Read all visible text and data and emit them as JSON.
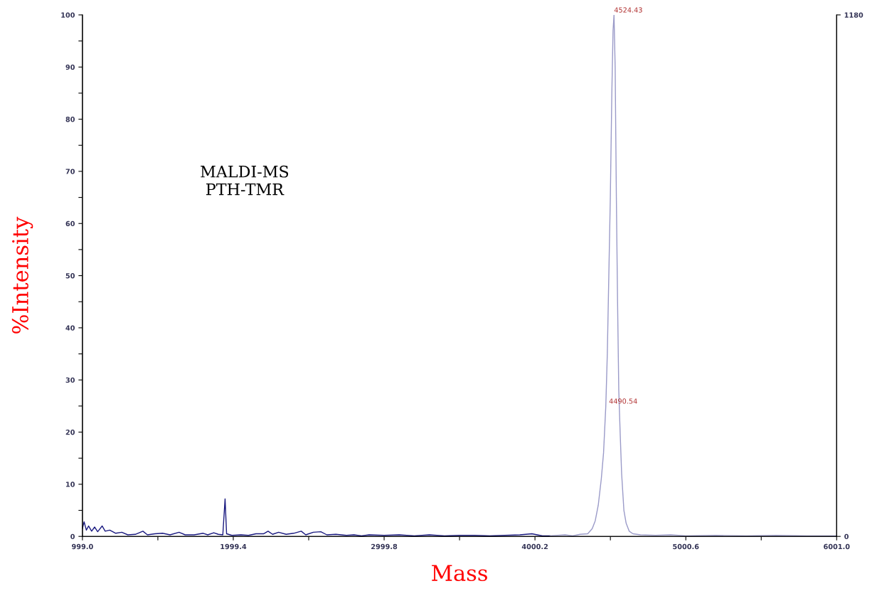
{
  "chart_data": {
    "type": "line",
    "xlabel": "Mass",
    "ylabel": "%Intensity",
    "annotations": [
      "MALDI-MS\nPTH-TMR",
      {
        "text": "4524.43",
        "x": 4524.43,
        "y": 100
      },
      {
        "text": "4490.54",
        "x": 4490.54,
        "y": 25
      }
    ],
    "series": [
      {
        "color": "#1a1a80",
        "x": [
          999,
          1010,
          1025,
          1040,
          1060,
          1080,
          1100,
          1130,
          1150,
          1180,
          1220,
          1260,
          1300,
          1350,
          1400,
          1430,
          1480,
          1530,
          1580,
          1640,
          1680,
          1740,
          1800,
          1830,
          1870,
          1900,
          1930,
          1945,
          1955,
          1990,
          2050,
          2100,
          2150,
          2200,
          2230,
          2260,
          2300,
          2350,
          2400,
          2450,
          2480,
          2530,
          2580,
          2620,
          2680,
          2750,
          2800,
          2850,
          2900,
          3000,
          3100,
          3200,
          3300,
          3400,
          3500,
          3600,
          3700,
          3800,
          3900,
          3980,
          4050,
          4100
        ],
        "values": [
          1.5,
          2.8,
          1.2,
          2.0,
          1.0,
          1.8,
          0.9,
          2.0,
          1.0,
          1.2,
          0.6,
          0.8,
          0.3,
          0.4,
          1.0,
          0.3,
          0.5,
          0.6,
          0.3,
          0.8,
          0.3,
          0.3,
          0.6,
          0.3,
          0.7,
          0.4,
          0.3,
          7.2,
          0.5,
          0.2,
          0.3,
          0.2,
          0.5,
          0.5,
          1.0,
          0.4,
          0.8,
          0.4,
          0.6,
          1.0,
          0.3,
          0.8,
          0.9,
          0.3,
          0.4,
          0.2,
          0.3,
          0.1,
          0.3,
          0.2,
          0.3,
          0.1,
          0.3,
          0.1,
          0.2,
          0.2,
          0.1,
          0.2,
          0.3,
          0.5,
          0.1,
          0.1
        ]
      },
      {
        "color": "#9a9ac8",
        "x": [
          4100,
          4200,
          4250,
          4300,
          4350,
          4380,
          4400,
          4420,
          4440,
          4455,
          4470,
          4480,
          4490,
          4500,
          4510,
          4518,
          4524.43,
          4532,
          4540,
          4548,
          4556,
          4565,
          4575,
          4590,
          4605,
          4625,
          4650,
          4700,
          4800,
          4900,
          5000,
          5200,
          5400,
          5600,
          5800,
          6001
        ],
        "values": [
          0.1,
          0.3,
          0.1,
          0.4,
          0.5,
          1.5,
          3,
          6,
          11,
          16,
          25,
          35,
          50,
          65,
          85,
          97,
          100,
          90,
          65,
          45,
          28,
          20,
          12,
          5,
          2.5,
          1,
          0.5,
          0.3,
          0.2,
          0.3,
          0.1,
          0.2,
          0.1,
          0.2,
          0.1,
          0.1
        ]
      }
    ],
    "xlim": [
      999.0,
      6001.0
    ],
    "xticks": [
      {
        "value": 999.0,
        "label": "999.0"
      },
      {
        "value": 1499.2,
        "label": null
      },
      {
        "value": 1999.4,
        "label": "1999.4"
      },
      {
        "value": 2499.6,
        "label": null
      },
      {
        "value": 2999.8,
        "label": "2999.8"
      },
      {
        "value": 3500.0,
        "label": null
      },
      {
        "value": 4000.2,
        "label": "4000.2"
      },
      {
        "value": 4500.4,
        "label": null
      },
      {
        "value": 5000.6,
        "label": "5000.6"
      },
      {
        "value": 5500.8,
        "label": null
      },
      {
        "value": 6001.0,
        "label": "6001.0"
      }
    ],
    "ylim": [
      0,
      100
    ],
    "yticks": [
      0,
      {
        "value": 5,
        "label": null
      },
      10,
      {
        "value": 15,
        "label": null
      },
      20,
      {
        "value": 25,
        "label": null
      },
      30,
      {
        "value": 35,
        "label": null
      },
      40,
      {
        "value": 45,
        "label": null
      },
      50,
      {
        "value": 55,
        "label": null
      },
      60,
      {
        "value": 65,
        "label": null
      },
      70,
      {
        "value": 75,
        "label": null
      },
      80,
      {
        "value": 85,
        "label": null
      },
      90,
      {
        "value": 95,
        "label": null
      },
      100
    ],
    "y2lim": [
      0,
      1180
    ],
    "y2ticks": [
      0,
      1180
    ],
    "grid": false,
    "marker": "none",
    "line_style": "solid"
  }
}
